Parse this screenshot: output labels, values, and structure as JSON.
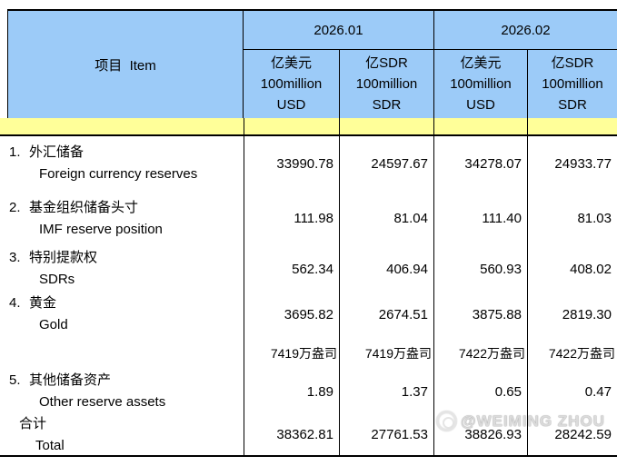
{
  "header": {
    "item_label": "项目  Item",
    "periods": [
      "2026.01",
      "2026.02"
    ],
    "unit_columns": [
      {
        "cn": "亿美元",
        "scale": "100million",
        "unit": "USD"
      },
      {
        "cn": "亿SDR",
        "scale": "100million",
        "unit": "SDR"
      },
      {
        "cn": "亿美元",
        "scale": "100million",
        "unit": "USD"
      },
      {
        "cn": "亿SDR",
        "scale": "100million",
        "unit": "SDR"
      }
    ]
  },
  "rows": [
    {
      "num": "1.",
      "cn": "外汇储备",
      "en": "Foreign currency reserves",
      "v": [
        "33990.78",
        "24597.67",
        "34278.07",
        "24933.77"
      ]
    },
    {
      "num": "2.",
      "cn": "基金组织储备头寸",
      "en": "IMF reserve position",
      "v": [
        "111.98",
        "81.04",
        "111.40",
        "81.03"
      ]
    },
    {
      "num": "3.",
      "cn": "特别提款权",
      "en": "SDRs",
      "v": [
        "562.34",
        "406.94",
        "560.93",
        "408.02"
      ]
    },
    {
      "num": "4.",
      "cn": "黄金",
      "en": "Gold",
      "v": [
        "3695.82",
        "2674.51",
        "3875.88",
        "2819.30"
      ]
    },
    {
      "num": "",
      "cn": "",
      "en": "",
      "v": [
        "7419万盎司",
        "7419万盎司",
        "7422万盎司",
        "7422万盎司"
      ]
    },
    {
      "num": "5.",
      "cn": "其他储备资产",
      "en": "Other reserve assets",
      "v": [
        "1.89",
        "1.37",
        "0.65",
        "0.47"
      ]
    },
    {
      "num": "",
      "cn": "合计",
      "en": "Total",
      "v": [
        "38362.81",
        "27761.53",
        "38826.93",
        "28242.59"
      ]
    }
  ],
  "watermark": {
    "text": "@WEIMING ZHOU"
  },
  "colors": {
    "header_blue": "#9CCBF8",
    "stripe_yellow": "#FFFF99",
    "border": "#000000"
  }
}
